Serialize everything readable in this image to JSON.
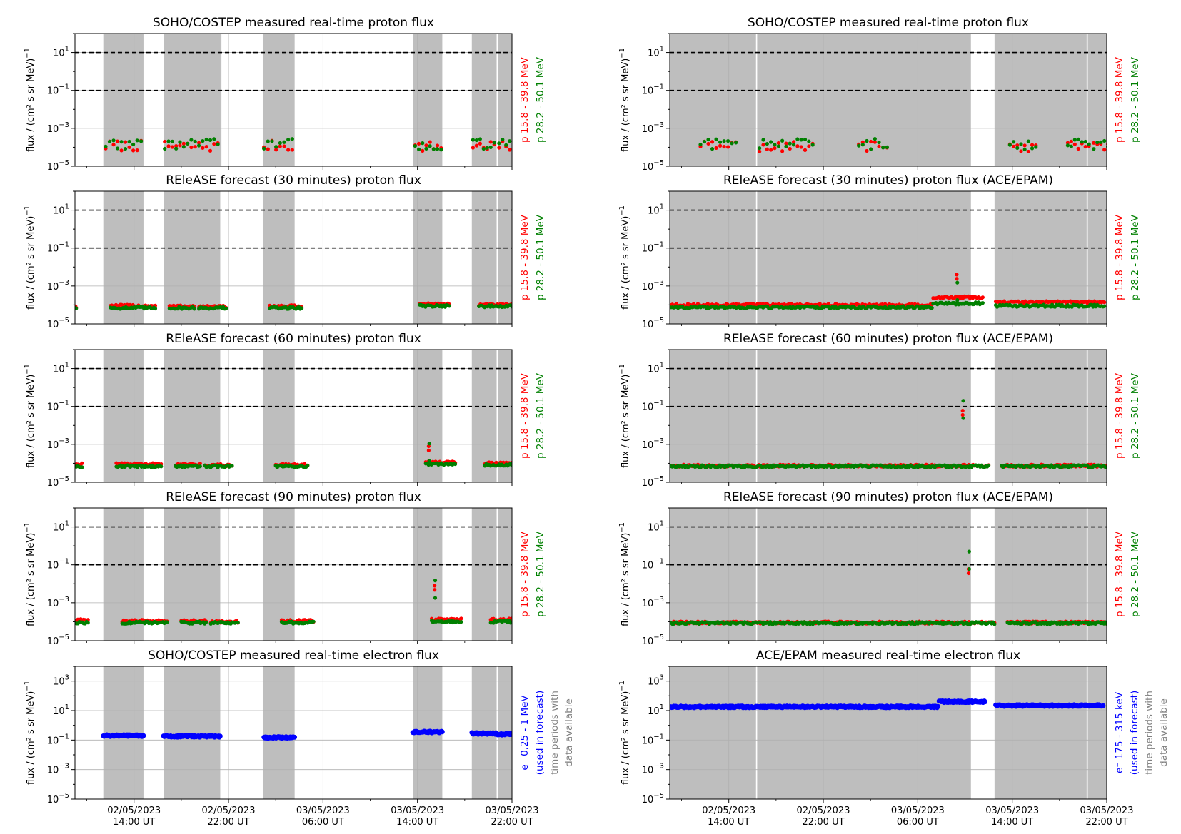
{
  "colors": {
    "low_energy": "#ff0000",
    "high_energy": "#008000",
    "electron": "#0000ff",
    "data_period": "#bebebe",
    "threshold_line": "#000000",
    "annotation_gray": "#808080"
  },
  "ylabel": "flux / (cm² s sr MeV)",
  "ylabel_exponent": "−1",
  "x_tick_labels": [
    {
      "date": "02/05/2023",
      "time": "14:00 UT"
    },
    {
      "date": "02/05/2023",
      "time": "22:00 UT"
    },
    {
      "date": "03/05/2023",
      "time": "06:00 UT"
    },
    {
      "date": "03/05/2023",
      "time": "14:00 UT"
    },
    {
      "date": "03/05/2023",
      "time": "22:00 UT"
    }
  ],
  "legend_entries": {
    "proton_low": "p 15.8 - 39.8 MeV",
    "proton_high": "p 28.2 - 50.1 MeV",
    "electron_left_a": "e⁻  0.25 - 1 MeV",
    "electron_right_a": "e⁻  175 - 315 keV",
    "electron_b": "(used in forecast)",
    "periods_a": "time periods with",
    "periods_b": "data available"
  },
  "panel_titles": {
    "l0": "SOHO/COSTEP measured real-time proton flux",
    "l1": "REleASE forecast (30 minutes) proton flux",
    "l2": "REleASE forecast (60 minutes) proton flux",
    "l3": "REleASE forecast (90 minutes) proton flux",
    "l4": "SOHO/COSTEP measured real-time electron flux",
    "r0": "SOHO/COSTEP measured real-time proton flux",
    "r1": "REleASE forecast (30 minutes) proton flux (ACE/EPAM)",
    "r2": "REleASE forecast (60 minutes) proton flux (ACE/EPAM)",
    "r3": "REleASE forecast (90 minutes) proton flux (ACE/EPAM)",
    "r4": "ACE/EPAM measured real-time electron flux"
  },
  "chart_data": [
    {
      "type": "scatter",
      "title": "SOHO/COSTEP measured real-time proton flux",
      "x_unit": "hours after 02/05/2023 00:00 UT",
      "xlim": [
        9.0,
        46.0
      ],
      "yscale": "log",
      "ylim": [
        1e-05,
        100
      ],
      "thresholds": [
        10,
        0.1
      ],
      "data_periods": [
        [
          11.4,
          14.8
        ],
        [
          16.5,
          21.3
        ],
        [
          21.3,
          21.4
        ],
        [
          24.9,
          27.6
        ],
        [
          37.6,
          40.1
        ],
        [
          42.6,
          44.7
        ],
        [
          44.8,
          46.6
        ]
      ],
      "series": [
        {
          "name": "p 15.8 - 39.8 MeV",
          "values_by_segment": [
            [
              11.6,
              14.6,
              0.00012
            ],
            [
              16.6,
              21.1,
              0.00011
            ],
            [
              25.0,
              27.4,
              0.00012
            ],
            [
              37.8,
              40.0,
              0.00011
            ],
            [
              42.7,
              44.5,
              0.00012
            ],
            [
              44.9,
              46.4,
              0.00011
            ]
          ]
        },
        {
          "name": "p 28.2 - 50.1 MeV",
          "values_by_segment": [
            [
              11.6,
              14.6,
              0.00015
            ],
            [
              16.6,
              21.1,
              0.00015
            ],
            [
              25.0,
              27.4,
              0.00015
            ],
            [
              37.8,
              40.0,
              0.00013
            ],
            [
              42.7,
              44.5,
              0.00015
            ],
            [
              44.9,
              46.4,
              0.00014
            ]
          ]
        }
      ]
    },
    {
      "type": "scatter",
      "title": "REleASE forecast (30 minutes) proton flux",
      "x_unit": "hours after 02/05/2023 00:00 UT",
      "xlim": [
        9.0,
        46.0
      ],
      "yscale": "log",
      "ylim": [
        1e-05,
        100
      ],
      "thresholds": [
        10,
        0.1
      ],
      "data_periods": [
        [
          11.4,
          14.8
        ],
        [
          16.5,
          21.3
        ],
        [
          24.9,
          27.6
        ],
        [
          37.6,
          40.1
        ],
        [
          42.6,
          44.7
        ],
        [
          44.8,
          46.6
        ]
      ],
      "series": [
        {
          "name": "p 15.8 - 39.8 MeV",
          "values_by_segment": [
            [
              9.0,
              9.1,
              8e-05
            ],
            [
              12.0,
              15.8,
              9e-05
            ],
            [
              17.0,
              19.1,
              8.5e-05
            ],
            [
              19.5,
              21.8,
              8e-05
            ],
            [
              25.5,
              28.2,
              8.5e-05
            ],
            [
              38.2,
              40.7,
              0.00011
            ],
            [
              43.2,
              46.0,
              0.0001
            ]
          ]
        },
        {
          "name": "p 28.2 - 50.1 MeV",
          "values_by_segment": [
            [
              9.0,
              9.1,
              7e-05
            ],
            [
              12.0,
              15.8,
              7e-05
            ],
            [
              17.0,
              19.1,
              7e-05
            ],
            [
              19.5,
              21.8,
              7e-05
            ],
            [
              25.5,
              28.2,
              7e-05
            ],
            [
              38.2,
              40.7,
              9e-05
            ],
            [
              43.2,
              46.0,
              8.5e-05
            ]
          ]
        }
      ]
    },
    {
      "type": "scatter",
      "title": "REleASE forecast (60 minutes) proton flux",
      "x_unit": "hours after 02/05/2023 00:00 UT",
      "xlim": [
        9.0,
        46.0
      ],
      "yscale": "log",
      "ylim": [
        1e-05,
        100
      ],
      "thresholds": [
        10,
        0.1
      ],
      "data_periods": [
        [
          11.4,
          14.8
        ],
        [
          16.5,
          21.3
        ],
        [
          24.9,
          27.6
        ],
        [
          37.6,
          40.1
        ],
        [
          42.6,
          44.7
        ],
        [
          44.8,
          46.6
        ]
      ],
      "series": [
        {
          "name": "p 15.8 - 39.8 MeV",
          "values_by_segment": [
            [
              9.0,
              9.6,
              9e-05
            ],
            [
              12.5,
              16.3,
              9e-05
            ],
            [
              17.5,
              19.6,
              8.5e-05
            ],
            [
              20.0,
              22.3,
              8e-05
            ],
            [
              26.0,
              28.7,
              8.5e-05
            ],
            [
              38.7,
              41.2,
              0.00011
            ],
            [
              43.7,
              46.0,
              0.0001
            ]
          ]
        },
        {
          "name": "p 28.2 - 50.1 MeV",
          "values_by_segment": [
            [
              9.0,
              9.6,
              7e-05
            ],
            [
              12.5,
              16.3,
              7e-05
            ],
            [
              17.5,
              19.6,
              7e-05
            ],
            [
              20.0,
              22.3,
              7e-05
            ],
            [
              26.0,
              28.7,
              7e-05
            ],
            [
              38.7,
              41.2,
              9e-05
            ],
            [
              43.7,
              46.0,
              8.5e-05
            ]
          ]
        }
      ],
      "spikes": [
        {
          "x": 38.95,
          "p_low": 0.0008,
          "p_high": 0.0011
        }
      ]
    },
    {
      "type": "scatter",
      "title": "REleASE forecast (90 minutes) proton flux",
      "x_unit": "hours after 02/05/2023 00:00 UT",
      "xlim": [
        9.0,
        46.0
      ],
      "yscale": "log",
      "ylim": [
        1e-05,
        100
      ],
      "thresholds": [
        10,
        0.1
      ],
      "data_periods": [
        [
          11.4,
          14.8
        ],
        [
          16.5,
          21.3
        ],
        [
          24.9,
          27.6
        ],
        [
          37.6,
          40.1
        ],
        [
          42.6,
          44.7
        ],
        [
          44.8,
          46.6
        ]
      ],
      "series": [
        {
          "name": "p 15.8 - 39.8 MeV",
          "values_by_segment": [
            [
              9.0,
              10.1,
              0.00012
            ],
            [
              13.0,
              16.8,
              0.00011
            ],
            [
              18.0,
              20.1,
              0.00011
            ],
            [
              20.5,
              22.8,
              0.0001
            ],
            [
              26.5,
              29.2,
              0.00011
            ],
            [
              39.2,
              41.7,
              0.00013
            ],
            [
              44.2,
              46.0,
              0.00013
            ]
          ]
        },
        {
          "name": "p 28.2 - 50.1 MeV",
          "values_by_segment": [
            [
              9.0,
              10.1,
              9e-05
            ],
            [
              13.0,
              16.8,
              9e-05
            ],
            [
              18.0,
              20.1,
              9e-05
            ],
            [
              20.5,
              22.8,
              9e-05
            ],
            [
              26.5,
              29.2,
              9e-05
            ],
            [
              39.2,
              41.7,
              0.0001
            ],
            [
              44.2,
              46.0,
              0.0001
            ]
          ]
        }
      ],
      "spikes": [
        {
          "x": 39.45,
          "p_low": 0.008,
          "p_high": 0.015
        }
      ]
    },
    {
      "type": "scatter",
      "title": "SOHO/COSTEP measured real-time electron flux",
      "x_unit": "hours after 02/05/2023 00:00 UT",
      "xlim": [
        9.0,
        46.0
      ],
      "yscale": "log",
      "ylim": [
        1e-05,
        10000
      ],
      "data_periods": [
        [
          11.4,
          14.8
        ],
        [
          16.5,
          21.3
        ],
        [
          24.9,
          27.6
        ],
        [
          37.6,
          40.1
        ],
        [
          42.6,
          44.7
        ],
        [
          44.8,
          46.6
        ]
      ],
      "series": [
        {
          "name": "e⁻  0.25 - 1 MeV",
          "values_by_segment": [
            [
              11.4,
              14.8,
              0.2
            ],
            [
              16.5,
              21.3,
              0.18
            ],
            [
              25.0,
              27.6,
              0.15
            ],
            [
              37.6,
              40.1,
              0.35
            ],
            [
              42.6,
              44.7,
              0.28
            ],
            [
              44.8,
              46.4,
              0.25
            ]
          ]
        }
      ]
    },
    {
      "type": "scatter",
      "title": "SOHO/COSTEP measured real-time proton flux",
      "x_unit": "hours after 02/05/2023 00:00 UT",
      "xlim": [
        9.0,
        46.0
      ],
      "yscale": "log",
      "ylim": [
        1e-05,
        100
      ],
      "thresholds": [
        10,
        0.1
      ],
      "data_periods": [
        [
          9.0,
          16.3
        ],
        [
          16.4,
          34.5
        ],
        [
          36.5,
          44.3
        ],
        [
          44.4,
          48.3
        ]
      ],
      "series": [
        {
          "name": "p 15.8 - 39.8 MeV",
          "values_by_segment": [
            [
              11.6,
              14.6,
              0.00012
            ],
            [
              16.6,
              21.1,
              0.00011
            ],
            [
              25.0,
              27.4,
              0.00012
            ],
            [
              37.8,
              40.0,
              0.00011
            ],
            [
              42.7,
              44.5,
              0.00012
            ],
            [
              44.9,
              46.4,
              0.00011
            ]
          ]
        },
        {
          "name": "p 28.2 - 50.1 MeV",
          "values_by_segment": [
            [
              11.6,
              14.6,
              0.00015
            ],
            [
              16.6,
              21.1,
              0.00015
            ],
            [
              25.0,
              27.4,
              0.00015
            ],
            [
              37.8,
              40.0,
              0.00013
            ],
            [
              42.7,
              44.5,
              0.00015
            ],
            [
              44.9,
              46.4,
              0.00014
            ]
          ]
        }
      ]
    },
    {
      "type": "scatter",
      "title": "REleASE forecast (30 minutes) proton flux (ACE/EPAM)",
      "x_unit": "hours after 02/05/2023 00:00 UT",
      "xlim": [
        9.0,
        46.0
      ],
      "yscale": "log",
      "ylim": [
        1e-05,
        100
      ],
      "thresholds": [
        10,
        0.1
      ],
      "data_periods": [
        [
          9.0,
          16.3
        ],
        [
          16.4,
          34.5
        ],
        [
          36.5,
          44.3
        ],
        [
          44.4,
          48.3
        ]
      ],
      "series": [
        {
          "name": "p 15.8 - 39.8 MeV",
          "values_by_segment": [
            [
              9.1,
              31.2,
              0.0001
            ],
            [
              31.3,
              35.5,
              0.00025
            ],
            [
              36.6,
              45.8,
              0.00014
            ]
          ]
        },
        {
          "name": "p 28.2 - 50.1 MeV",
          "values_by_segment": [
            [
              9.1,
              31.2,
              7.5e-05
            ],
            [
              31.3,
              35.5,
              0.00012
            ],
            [
              36.6,
              45.8,
              9e-05
            ]
          ]
        }
      ],
      "spikes": [
        {
          "x": 33.3,
          "p_low": 0.004,
          "p_high": 0.0015
        }
      ]
    },
    {
      "type": "scatter",
      "title": "REleASE forecast (60 minutes) proton flux (ACE/EPAM)",
      "x_unit": "hours after 02/05/2023 00:00 UT",
      "xlim": [
        9.0,
        46.0
      ],
      "yscale": "log",
      "ylim": [
        1e-05,
        100
      ],
      "thresholds": [
        10,
        0.1
      ],
      "data_periods": [
        [
          9.0,
          16.3
        ],
        [
          16.4,
          34.5
        ],
        [
          36.5,
          44.3
        ],
        [
          44.4,
          48.3
        ]
      ],
      "series": [
        {
          "name": "p 15.8 - 39.8 MeV",
          "values_by_segment": [
            [
              9.1,
              36.0,
              7.5e-05
            ],
            [
              37.1,
              45.9,
              7.5e-05
            ]
          ]
        },
        {
          "name": "p 28.2 - 50.1 MeV",
          "values_by_segment": [
            [
              9.1,
              36.0,
              7e-05
            ],
            [
              37.1,
              45.9,
              7e-05
            ]
          ]
        }
      ],
      "spikes": [
        {
          "x": 33.8,
          "p_low": 0.06,
          "p_high": 0.2
        }
      ]
    },
    {
      "type": "scatter",
      "title": "REleASE forecast (90 minutes) proton flux (ACE/EPAM)",
      "x_unit": "hours after 02/05/2023 00:00 UT",
      "xlim": [
        9.0,
        46.0
      ],
      "yscale": "log",
      "ylim": [
        1e-05,
        100
      ],
      "thresholds": [
        10,
        0.1
      ],
      "data_periods": [
        [
          9.0,
          16.3
        ],
        [
          16.4,
          34.5
        ],
        [
          36.5,
          44.3
        ],
        [
          44.4,
          48.3
        ]
      ],
      "series": [
        {
          "name": "p 15.8 - 39.8 MeV",
          "values_by_segment": [
            [
              9.1,
              36.5,
              9e-05
            ],
            [
              37.6,
              46.0,
              9e-05
            ]
          ]
        },
        {
          "name": "p 28.2 - 50.1 MeV",
          "values_by_segment": [
            [
              9.1,
              36.5,
              8.5e-05
            ],
            [
              37.6,
              46.0,
              8.5e-05
            ]
          ]
        }
      ],
      "spikes": [
        {
          "x": 34.3,
          "p_low": 0.06,
          "p_high": 0.5
        }
      ]
    },
    {
      "type": "scatter",
      "title": "ACE/EPAM measured real-time electron flux",
      "x_unit": "hours after 02/05/2023 00:00 UT",
      "xlim": [
        9.0,
        46.0
      ],
      "yscale": "log",
      "ylim": [
        1e-05,
        10000
      ],
      "data_periods": [
        [
          9.0,
          16.3
        ],
        [
          16.4,
          34.5
        ],
        [
          36.5,
          44.3
        ],
        [
          44.4,
          48.3
        ]
      ],
      "series": [
        {
          "name": "e⁻  175 - 315 keV",
          "values_by_segment": [
            [
              9.1,
              31.7,
              18
            ],
            [
              31.8,
              35.7,
              40
            ],
            [
              36.6,
              45.7,
              22
            ]
          ]
        }
      ]
    }
  ]
}
